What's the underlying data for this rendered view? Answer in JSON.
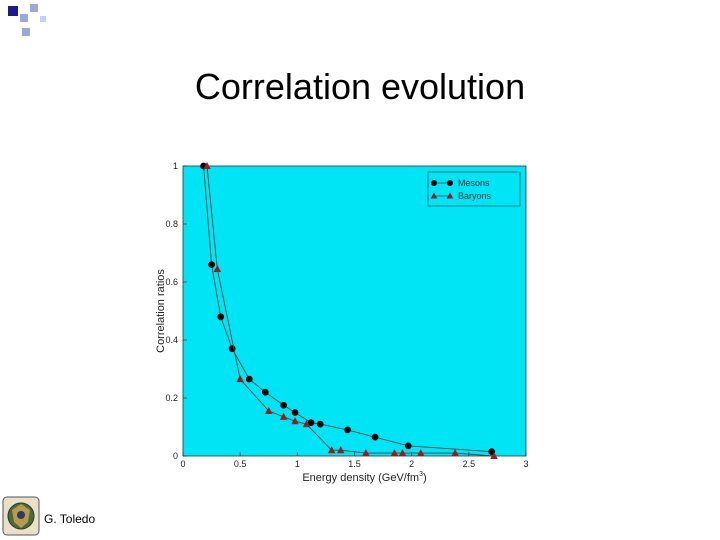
{
  "slide": {
    "title": "Correlation evolution",
    "footer_author": "G. Toledo",
    "logo_icon": "university-seal-icon",
    "deco_icon": "corner-squares-icon"
  },
  "colors": {
    "plot_background": "#00E5F5",
    "mesons": "#000000",
    "baryons": "#A01818",
    "line": "#444444",
    "deco_dark": "#1A1A8C",
    "deco_light": "#9AA8D8"
  },
  "chart_data": {
    "type": "scatter",
    "xlabel": "Energy density (GeV/fm",
    "xlabel_superscript": "3",
    "xlabel_suffix": ")",
    "ylabel": "Correlation ratios",
    "xlim": [
      0,
      3
    ],
    "ylim": [
      0,
      1
    ],
    "xticks": [
      "0",
      "0.5",
      "1",
      "1.5",
      "2",
      "2.5",
      "3"
    ],
    "yticks": [
      "0",
      "0.2",
      "0.4",
      "0.6",
      "0.8",
      "1"
    ],
    "legend_position": "top-right",
    "series": [
      {
        "name": "Mesons",
        "marker": "circle",
        "x": [
          0.18,
          0.25,
          0.33,
          0.43,
          0.58,
          0.72,
          0.88,
          0.98,
          1.12,
          1.2,
          1.44,
          1.68,
          1.97,
          2.7
        ],
        "y": [
          1.0,
          0.66,
          0.48,
          0.37,
          0.265,
          0.22,
          0.175,
          0.15,
          0.115,
          0.11,
          0.09,
          0.065,
          0.035,
          0.015
        ]
      },
      {
        "name": "Baryons",
        "marker": "triangle",
        "x": [
          0.21,
          0.3,
          0.5,
          0.75,
          0.88,
          0.98,
          1.08,
          1.3,
          1.38,
          1.6,
          1.85,
          1.92,
          2.08,
          2.38,
          2.72
        ],
        "y": [
          1.0,
          0.645,
          0.265,
          0.155,
          0.135,
          0.12,
          0.11,
          0.02,
          0.02,
          0.01,
          0.01,
          0.01,
          0.01,
          0.01,
          0.0
        ]
      }
    ]
  }
}
